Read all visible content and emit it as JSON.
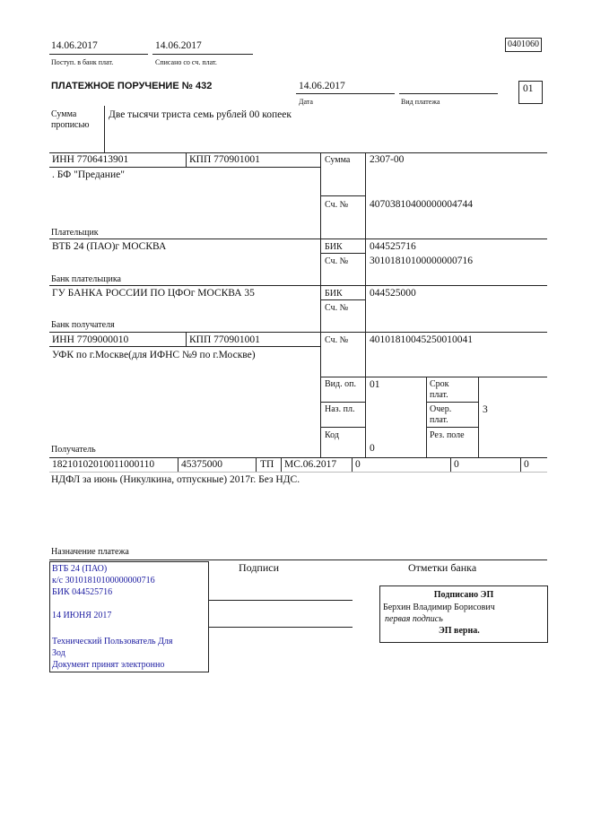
{
  "header": {
    "received_date": "14.06.2017",
    "received_label": "Поступ. в банк плат.",
    "debited_date": "14.06.2017",
    "debited_label": "Списано со сч. плат.",
    "form_code": "0401060",
    "title": "ПЛАТЕЖНОЕ ПОРУЧЕНИЕ № 432",
    "date": "14.06.2017",
    "date_label": "Дата",
    "payment_type_label": "Вид платежа",
    "status_code": "01"
  },
  "amount_words": {
    "label": "Сумма прописью",
    "value": "Две тысячи триста семь рублей 00 копеек"
  },
  "payer": {
    "inn": "ИНН 7706413901",
    "kpp": "КПП 770901001",
    "name": ". БФ \"Предание\"",
    "label": "Плательщик",
    "sum_label": "Сумма",
    "sum": "2307-00",
    "account_label": "Сч. №",
    "account": "40703810400000004744"
  },
  "payer_bank": {
    "name": "ВТБ 24 (ПАО)г МОСКВА",
    "label": "Банк плательщика",
    "bik_label": "БИК",
    "bik": "044525716",
    "account_label": "Сч. №",
    "account": "30101810100000000716"
  },
  "payee_bank": {
    "name": "ГУ БАНКА РОССИИ ПО ЦФОг МОСКВА 35",
    "label": "Банк получателя",
    "bik_label": "БИК",
    "bik": "044525000",
    "account_label": "Сч. №"
  },
  "payee": {
    "inn": "ИНН 7709000010",
    "kpp": "КПП 770901001",
    "name": "УФК по г.Москве(для ИФНС №9 по г.Москве)",
    "label": "Получатель",
    "account_label": "Сч. №",
    "account": "40101810045250010041",
    "op_type_label": "Вид. оп.",
    "op_type": "01",
    "purpose_code_label": "Наз. пл.",
    "code_label": "Код",
    "code": "0",
    "term_label": "Срок плат.",
    "priority_label": "Очер. плат.",
    "priority": "3",
    "reserve_label": "Рез. поле"
  },
  "tax_row": [
    "18210102010011000110",
    "45375000",
    "ТП",
    "МС.06.2017",
    "0",
    "0",
    "0"
  ],
  "purpose": {
    "text": "НДФЛ за июнь (Никулкина, отпускные) 2017г. Без НДС.",
    "label": "Назначение платежа"
  },
  "stamp": {
    "lines": [
      "ВТБ 24 (ПАО)",
      "к/с 30101810100000000716",
      "БИК 044525716",
      "14 ИЮНЯ 2017",
      "Технический Пользователь Для",
      "Зод",
      "Документ принят электронно"
    ],
    "color": "#1a1aa0"
  },
  "signatures_label": "Подписи",
  "bank_marks_label": "Отметки банка",
  "esign": {
    "title": "Подписано ЭП",
    "name": "Берхин Владимир Борисович",
    "role": "первая подпись",
    "status": "ЭП верна."
  }
}
